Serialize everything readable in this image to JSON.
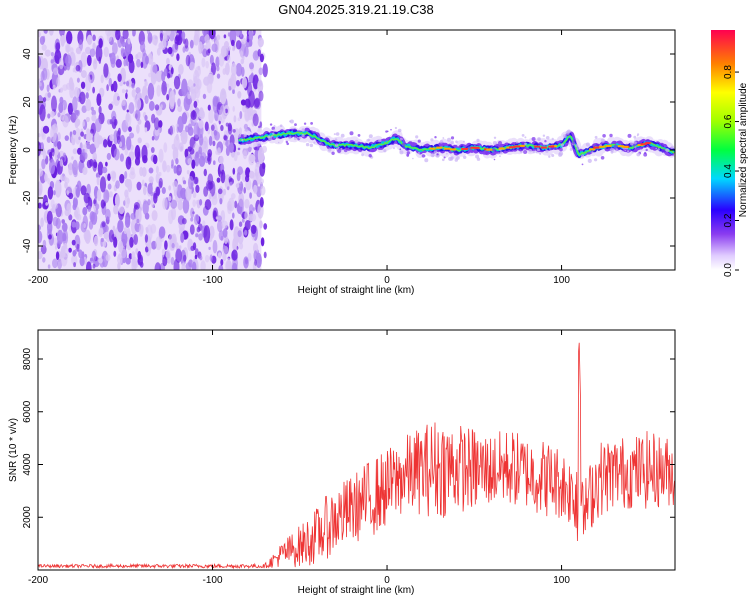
{
  "title": "GN04.2025.319.21.19.C38",
  "chart_data": [
    {
      "type": "heatmap",
      "title": "GN04.2025.319.21.19.C38",
      "xlabel": "Height of straight line (km)",
      "ylabel": "Frequency (Hz)",
      "xlim": [
        -200,
        165
      ],
      "ylim": [
        -50,
        50
      ],
      "xticks": [
        -200,
        -100,
        0,
        100
      ],
      "yticks": [
        -40,
        -20,
        0,
        20,
        40
      ],
      "noise_region_x": [
        -200,
        -72
      ],
      "signal_trace": {
        "x": [
          -85,
          -75,
          -65,
          -55,
          -45,
          -40,
          -35,
          -30,
          -20,
          -10,
          0,
          5,
          10,
          20,
          30,
          40,
          50,
          60,
          70,
          80,
          90,
          100,
          105,
          110,
          120,
          130,
          140,
          150,
          160,
          165
        ],
        "y": [
          4,
          5,
          6,
          7,
          7,
          5,
          3,
          2,
          2,
          1,
          3,
          5,
          2,
          0,
          1,
          0,
          1,
          0,
          1,
          2,
          1,
          2,
          6,
          -2,
          1,
          2,
          1,
          3,
          0,
          -1
        ]
      },
      "colorbar": {
        "label": "Normalized spectral amplitude",
        "ticks": [
          "0.0",
          "0.2",
          "0.4",
          "0.6",
          "0.8"
        ],
        "range": [
          0,
          0.97
        ]
      }
    },
    {
      "type": "line",
      "xlabel": "Height of straight line (km)",
      "ylabel": "SNR (10 * v/v)",
      "xlim": [
        -200,
        165
      ],
      "ylim": [
        0,
        9100
      ],
      "xticks": [
        -200,
        -100,
        0,
        100
      ],
      "yticks": [
        2000,
        4000,
        6000,
        8000
      ],
      "series": [
        {
          "name": "SNR",
          "color": "#ee3333",
          "envelope": {
            "x": [
              -200,
              -70,
              -60,
              -50,
              -40,
              -30,
              -20,
              -10,
              0,
              10,
              20,
              30,
              40,
              50,
              60,
              70,
              80,
              90,
              100,
              108,
              110,
              112,
              120,
              130,
              140,
              150,
              165
            ],
            "mean": [
              150,
              150,
              600,
              900,
              1300,
              1900,
              2300,
              2700,
              3100,
              3600,
              3800,
              3900,
              3900,
              3800,
              3800,
              3900,
              3700,
              3500,
              3300,
              2800,
              3500,
              2000,
              3400,
              3700,
              3700,
              3800,
              3700
            ],
            "amp": [
              60,
              80,
              500,
              800,
              1100,
              1300,
              1300,
              1500,
              1500,
              1500,
              1700,
              2000,
              1700,
              1600,
              1400,
              1500,
              1400,
              1500,
              1400,
              1300,
              5400,
              1200,
              1500,
              1400,
              1400,
              1500,
              1300
            ]
          }
        }
      ]
    }
  ],
  "colors": {
    "noise_light": "#d8c4f5",
    "noise_mid": "#a97ff0",
    "noise_dark": "#6a1fe0",
    "line": "#ee3333"
  }
}
